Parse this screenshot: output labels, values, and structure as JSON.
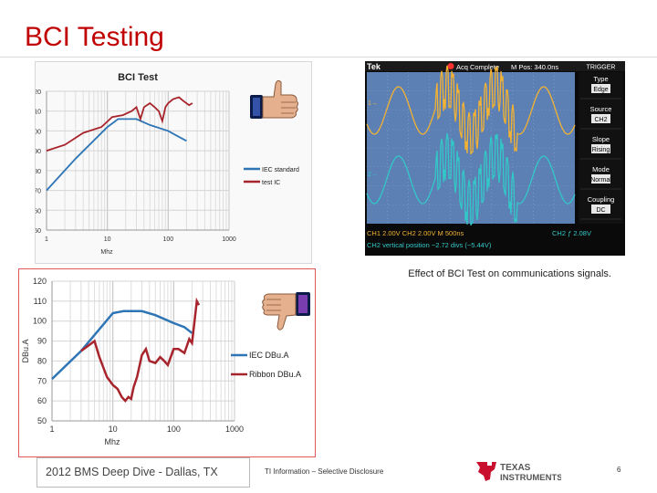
{
  "slide": {
    "title": "BCI Testing",
    "scope_caption": "Effect of BCI Test on communications signals.",
    "footer_left": "2012 BMS Deep Dive - Dallas, TX",
    "footer_mid": "TI Information – Selective Disclosure",
    "page_number": "6",
    "logo_text_1": "TEXAS",
    "logo_text_2": "INSTRUMENTS",
    "colors": {
      "title": "#c00000",
      "series_standard": "#2e75b6",
      "series_dut": "#a8242c",
      "border_red": "#e05a5a"
    },
    "icons": [
      "thumbs-up-icon",
      "thumbs-down-icon",
      "ti-logo-icon"
    ]
  },
  "chart_data": [
    {
      "type": "line",
      "title": "BCI Test",
      "xlabel": "Mhz",
      "ylabel": "dbuA",
      "x_scale": "log",
      "xlim": [
        1,
        1000
      ],
      "ylim": [
        50,
        120
      ],
      "xticks": [
        "1",
        "10",
        "100",
        "1000"
      ],
      "yticks": [
        "50",
        "60",
        "70",
        "80",
        "90",
        "100",
        "110",
        "120"
      ],
      "grid": true,
      "legend_position": "right",
      "series": [
        {
          "name": "IEC standard",
          "color": "#2e75b6",
          "points": [
            [
              1,
              70
            ],
            [
              3,
              86
            ],
            [
              10,
              102
            ],
            [
              15,
              106
            ],
            [
              30,
              106
            ],
            [
              50,
              103
            ],
            [
              100,
              100
            ],
            [
              150,
              97
            ],
            [
              200,
              95
            ]
          ]
        },
        {
          "name": "test IC",
          "color": "#a8242c",
          "points": [
            [
              1,
              90
            ],
            [
              2,
              93
            ],
            [
              4,
              99
            ],
            [
              8,
              102
            ],
            [
              12,
              107
            ],
            [
              18,
              108
            ],
            [
              25,
              110
            ],
            [
              30,
              112
            ],
            [
              35,
              106
            ],
            [
              40,
              112
            ],
            [
              50,
              114
            ],
            [
              60,
              112
            ],
            [
              70,
              110
            ],
            [
              80,
              105
            ],
            [
              90,
              112
            ],
            [
              100,
              114
            ],
            [
              120,
              116
            ],
            [
              150,
              117
            ],
            [
              180,
              115
            ],
            [
              220,
              113
            ],
            [
              250,
              114
            ]
          ]
        }
      ]
    },
    {
      "type": "line",
      "title": "",
      "xlabel": "Mhz",
      "ylabel": "DBu.A",
      "x_scale": "log",
      "xlim": [
        1,
        1000
      ],
      "ylim": [
        50,
        120
      ],
      "xticks": [
        "1",
        "10",
        "100",
        "1000"
      ],
      "yticks": [
        "50",
        "60",
        "70",
        "80",
        "90",
        "100",
        "110",
        "120"
      ],
      "grid": true,
      "legend_position": "right",
      "series": [
        {
          "name": "IEC DBu.A",
          "color": "#2e75b6",
          "points": [
            [
              1,
              71
            ],
            [
              3,
              85
            ],
            [
              10,
              104
            ],
            [
              15,
              105
            ],
            [
              30,
              105
            ],
            [
              50,
              103
            ],
            [
              100,
              99
            ],
            [
              150,
              97
            ],
            [
              200,
              94
            ]
          ]
        },
        {
          "name": "Ribbon DBu.A",
          "color": "#a8242c",
          "points": [
            [
              3,
              85
            ],
            [
              5,
              90
            ],
            [
              6,
              82
            ],
            [
              8,
              72
            ],
            [
              10,
              68
            ],
            [
              12,
              66
            ],
            [
              14,
              62
            ],
            [
              16,
              60
            ],
            [
              18,
              62
            ],
            [
              20,
              61
            ],
            [
              22,
              67
            ],
            [
              25,
              72
            ],
            [
              30,
              83
            ],
            [
              35,
              86
            ],
            [
              40,
              80
            ],
            [
              50,
              79
            ],
            [
              60,
              82
            ],
            [
              70,
              80
            ],
            [
              80,
              78
            ],
            [
              100,
              86
            ],
            [
              120,
              86
            ],
            [
              150,
              84
            ],
            [
              180,
              91
            ],
            [
              200,
              89
            ],
            [
              220,
              100
            ],
            [
              240,
              110
            ],
            [
              260,
              108
            ]
          ]
        }
      ]
    },
    {
      "type": "other",
      "title": "",
      "instrument": "Tek",
      "status": "Acq Complete",
      "m_pos": "M Pos: 340.0ns",
      "trigger_menu": {
        "header": "TRIGGER",
        "items": [
          {
            "label": "Type",
            "value": "Edge"
          },
          {
            "label": "Source",
            "value": "CH2"
          },
          {
            "label": "Slope",
            "value": "Rising"
          },
          {
            "label": "Mode",
            "value": "Normal"
          },
          {
            "label": "Coupling",
            "value": "DC"
          }
        ]
      },
      "status_line_1": "CH1  2.00V    CH2  2.00V    M 500ns",
      "status_line_1_right": "CH2  ƒ  2.08V",
      "status_line_2": "CH2 vertical position −2.72 divs (−5.44V)",
      "ch1_marker": "1→",
      "ch2_marker": "2→"
    }
  ]
}
